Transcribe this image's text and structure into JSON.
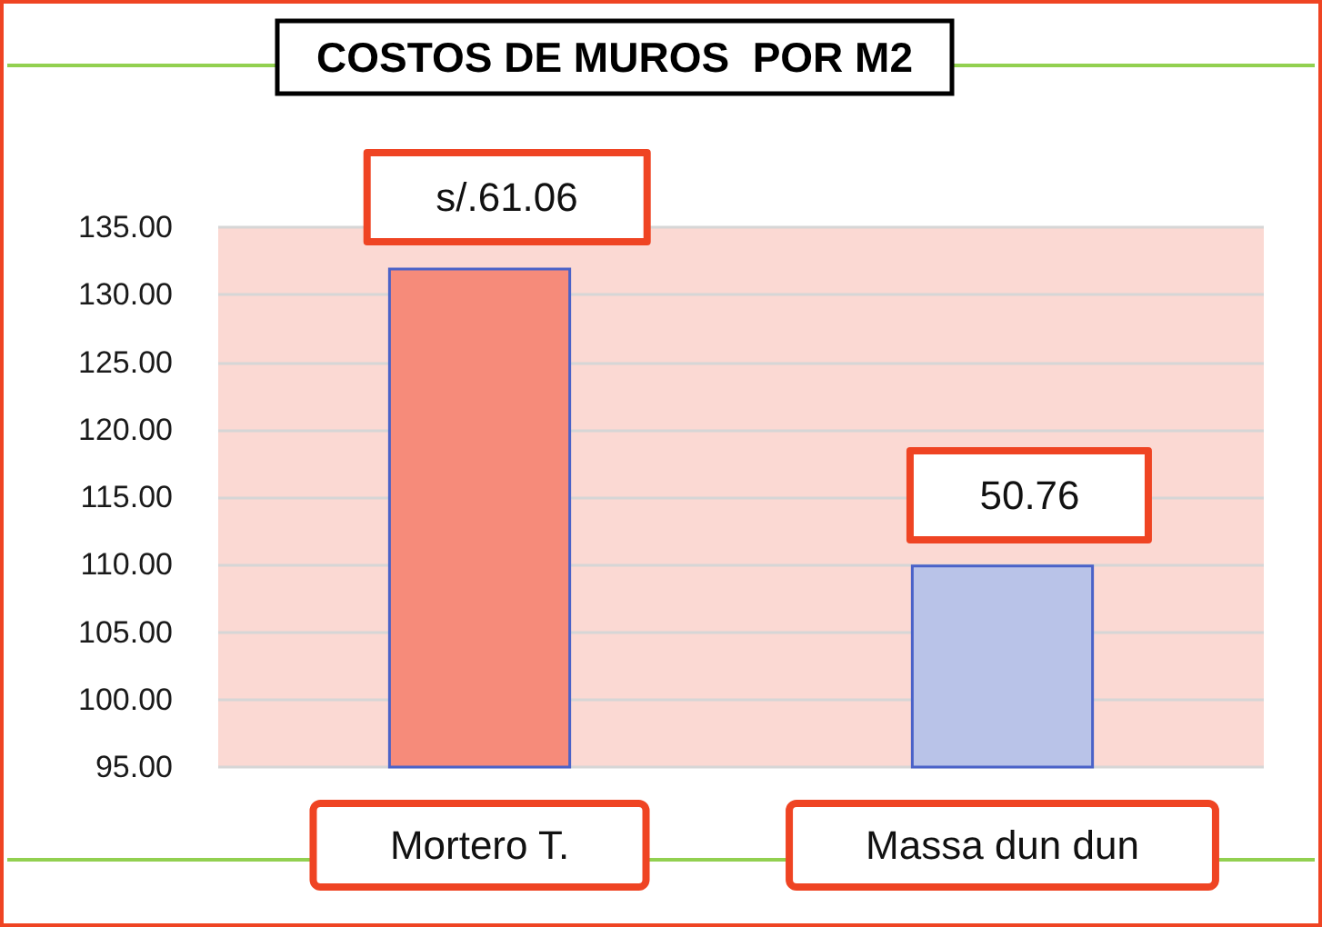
{
  "chart_data": {
    "type": "bar",
    "title": "COSTOS DE MUROS  POR M2",
    "categories": [
      "Mortero T.",
      "Massa dun dun"
    ],
    "values": [
      132,
      110
    ],
    "colors": [
      "#f68b7a",
      "#b9c3e8"
    ],
    "ylim": [
      95,
      135
    ],
    "yticks": [
      {
        "value": 95,
        "label": "95.00"
      },
      {
        "value": 100,
        "label": "100.00"
      },
      {
        "value": 105,
        "label": "105.00"
      },
      {
        "value": 110,
        "label": "110.00"
      },
      {
        "value": 115,
        "label": "115.00"
      },
      {
        "value": 120,
        "label": "120.00"
      },
      {
        "value": 125,
        "label": "125.00"
      },
      {
        "value": 130,
        "label": "130.00"
      },
      {
        "value": 135,
        "label": "135.00"
      }
    ],
    "grid": "y",
    "annotations": [
      {
        "text": "s/.61.06",
        "x": "Mortero T.",
        "y": 132
      },
      {
        "text": "50.76",
        "x": "Massa dun dun",
        "y": 110
      }
    ]
  }
}
